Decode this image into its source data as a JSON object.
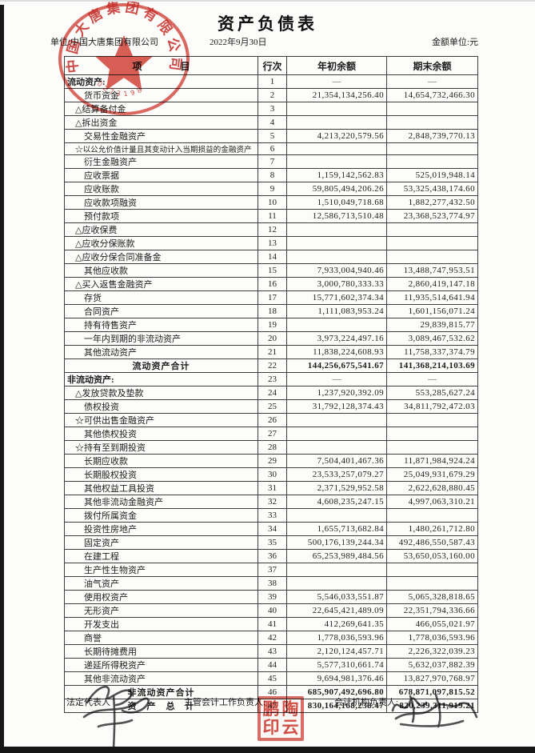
{
  "document": {
    "title": "资产负债表",
    "unit_label": "单位:中国大唐集团有限公司",
    "date": "2022年9月30日",
    "currency_label": "金额单位:元"
  },
  "table": {
    "headers": {
      "item": "项　　　　目",
      "line": "行次",
      "begin": "年初余额",
      "end": "期末余额"
    },
    "rows": [
      {
        "label": "流动资产:",
        "line": "1",
        "begin": "—",
        "end": "—",
        "type": "section"
      },
      {
        "label": "货币资金",
        "line": "2",
        "begin": "21,354,134,256.40",
        "end": "14,654,732,466.30",
        "type": "item"
      },
      {
        "label": "△结算备付金",
        "line": "3",
        "begin": "",
        "end": "",
        "type": "mark"
      },
      {
        "label": "△拆出资金",
        "line": "4",
        "begin": "",
        "end": "",
        "type": "mark"
      },
      {
        "label": "交易性金融资产",
        "line": "5",
        "begin": "4,213,220,579.56",
        "end": "2,848,739,770.13",
        "type": "item"
      },
      {
        "label": "☆以公允价值计量且其变动计入当期损益的金融资产",
        "line": "6",
        "begin": "",
        "end": "",
        "type": "mark"
      },
      {
        "label": "衍生金融资产",
        "line": "7",
        "begin": "",
        "end": "",
        "type": "item"
      },
      {
        "label": "应收票据",
        "line": "8",
        "begin": "1,159,142,562.83",
        "end": "525,019,948.14",
        "type": "item"
      },
      {
        "label": "应收账款",
        "line": "9",
        "begin": "59,805,494,206.26",
        "end": "53,325,438,174.60",
        "type": "item"
      },
      {
        "label": "应收款项融资",
        "line": "10",
        "begin": "1,510,049,718.68",
        "end": "1,882,277,432.50",
        "type": "item"
      },
      {
        "label": "预付款项",
        "line": "11",
        "begin": "12,586,713,510.48",
        "end": "23,368,523,774.97",
        "type": "item"
      },
      {
        "label": "△应收保费",
        "line": "12",
        "begin": "",
        "end": "",
        "type": "mark"
      },
      {
        "label": "△应收分保账款",
        "line": "13",
        "begin": "",
        "end": "",
        "type": "mark"
      },
      {
        "label": "△应收分保合同准备金",
        "line": "14",
        "begin": "",
        "end": "",
        "type": "mark"
      },
      {
        "label": "其他应收款",
        "line": "15",
        "begin": "7,933,004,940.46",
        "end": "13,488,747,953.51",
        "type": "item"
      },
      {
        "label": "△买入返售金融资产",
        "line": "16",
        "begin": "3,000,780,333.33",
        "end": "2,860,419,147.18",
        "type": "mark"
      },
      {
        "label": "存货",
        "line": "17",
        "begin": "15,771,602,374.34",
        "end": "11,935,514,641.94",
        "type": "item"
      },
      {
        "label": "合同资产",
        "line": "18",
        "begin": "1,111,083,953.24",
        "end": "1,601,156,071.24",
        "type": "item"
      },
      {
        "label": "持有待售资产",
        "line": "19",
        "begin": "",
        "end": "29,839,815.77",
        "type": "item"
      },
      {
        "label": "一年内到期的非流动资产",
        "line": "20",
        "begin": "3,973,224,497.16",
        "end": "3,089,467,532.62",
        "type": "item"
      },
      {
        "label": "其他流动资产",
        "line": "21",
        "begin": "11,838,224,608.93",
        "end": "11,758,337,374.79",
        "type": "item"
      },
      {
        "label": "流动资产合计",
        "line": "22",
        "begin": "144,256,675,541.67",
        "end": "141,368,214,103.69",
        "type": "total"
      },
      {
        "label": "非流动资产:",
        "line": "23",
        "begin": "—",
        "end": "—",
        "type": "section"
      },
      {
        "label": "△发放贷款及垫款",
        "line": "24",
        "begin": "1,237,920,392.09",
        "end": "553,285,627.24",
        "type": "mark"
      },
      {
        "label": "债权投资",
        "line": "25",
        "begin": "31,792,128,374.43",
        "end": "34,811,792,472.03",
        "type": "item"
      },
      {
        "label": "☆可供出售金融资产",
        "line": "26",
        "begin": "",
        "end": "",
        "type": "mark"
      },
      {
        "label": "其他债权投资",
        "line": "27",
        "begin": "",
        "end": "",
        "type": "item"
      },
      {
        "label": "☆持有至到期投资",
        "line": "28",
        "begin": "",
        "end": "",
        "type": "mark"
      },
      {
        "label": "长期应收款",
        "line": "29",
        "begin": "7,504,401,467.36",
        "end": "11,871,984,924.24",
        "type": "item"
      },
      {
        "label": "长期股权投资",
        "line": "30",
        "begin": "23,533,257,079.27",
        "end": "25,049,931,679.29",
        "type": "item"
      },
      {
        "label": "其他权益工具投资",
        "line": "31",
        "begin": "2,371,529,952.58",
        "end": "2,622,628,880.45",
        "type": "item"
      },
      {
        "label": "其他非流动金融资产",
        "line": "32",
        "begin": "4,608,235,247.15",
        "end": "4,997,063,310.21",
        "type": "item"
      },
      {
        "label": "拨付所属资金",
        "line": "33",
        "begin": "",
        "end": "",
        "type": "item"
      },
      {
        "label": "投资性房地产",
        "line": "34",
        "begin": "1,655,713,682.84",
        "end": "1,480,261,712.80",
        "type": "item"
      },
      {
        "label": "固定资产",
        "line": "35",
        "begin": "500,176,139,244.34",
        "end": "492,486,550,587.43",
        "type": "item"
      },
      {
        "label": "在建工程",
        "line": "36",
        "begin": "65,253,989,484.56",
        "end": "53,650,053,160.00",
        "type": "item"
      },
      {
        "label": "生产性生物资产",
        "line": "37",
        "begin": "",
        "end": "",
        "type": "item"
      },
      {
        "label": "油气资产",
        "line": "38",
        "begin": "",
        "end": "",
        "type": "item"
      },
      {
        "label": "使用权资产",
        "line": "39",
        "begin": "5,546,033,551.87",
        "end": "5,065,328,818.65",
        "type": "item"
      },
      {
        "label": "无形资产",
        "line": "40",
        "begin": "22,645,421,489.09",
        "end": "22,351,794,336.66",
        "type": "item"
      },
      {
        "label": "开发支出",
        "line": "41",
        "begin": "412,269,641.35",
        "end": "466,055,021.97",
        "type": "item"
      },
      {
        "label": "商誉",
        "line": "42",
        "begin": "1,778,036,593.96",
        "end": "1,778,036,593.96",
        "type": "item"
      },
      {
        "label": "长期待摊费用",
        "line": "43",
        "begin": "2,120,124,457.71",
        "end": "2,226,322,039.23",
        "type": "item"
      },
      {
        "label": "递延所得税资产",
        "line": "44",
        "begin": "5,577,310,661.74",
        "end": "5,632,037,882.39",
        "type": "item"
      },
      {
        "label": "其他非流动资产",
        "line": "45",
        "begin": "9,694,981,376.46",
        "end": "13,827,970,768.97",
        "type": "item"
      },
      {
        "label": "非流动资产合计",
        "line": "46",
        "begin": "685,907,492,696.80",
        "end": "678,871,097,815.52",
        "type": "total"
      },
      {
        "label": "资　产　总　计",
        "line": "47",
        "begin": "830,164,168,238.47",
        "end": "820,239,311,919.21",
        "type": "total"
      }
    ]
  },
  "footer": {
    "legal_rep_label": "法定代表人",
    "chief_accounting_label": "主管会计工作负责人:",
    "accounting_head_label": "会计机构负责人:"
  },
  "seals": {
    "company_seal": {
      "text": "中国大唐集团有限公司",
      "number": "0273198",
      "color": "#cc372c"
    },
    "name_seal": {
      "text": "陶鹏云印",
      "chars": [
        "鹏",
        "陶",
        "印",
        "云"
      ],
      "color": "#cc372c"
    }
  }
}
